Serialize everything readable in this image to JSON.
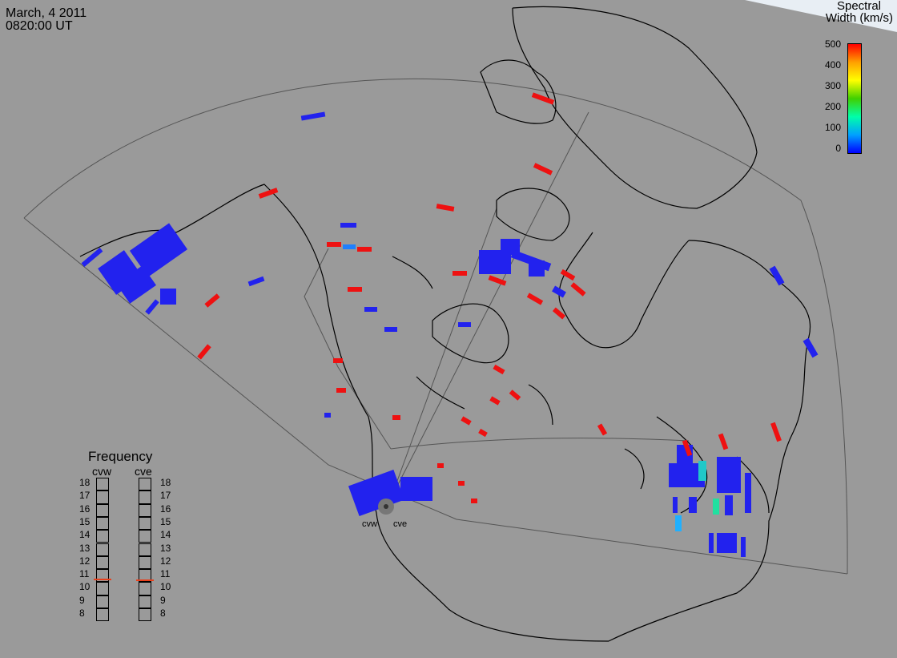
{
  "header": {
    "date": "March, 4 2011",
    "time": "0820:00 UT"
  },
  "colorbar": {
    "title_line1": "Spectral",
    "title_line2": "Width (km/s)",
    "ticks": [
      "500",
      "400",
      "300",
      "200",
      "100",
      "0"
    ],
    "stops": [
      "#0000ff",
      "#00a0ff",
      "#00ffaa",
      "#40d000",
      "#ffff00",
      "#ffa000",
      "#ff0000"
    ]
  },
  "frequency_panel": {
    "title": "Frequency",
    "radars": [
      {
        "name": "cvw",
        "freq_mhz": 10.8
      },
      {
        "name": "cve",
        "freq_mhz": 10.7
      }
    ],
    "scale": [
      "18",
      "17",
      "16",
      "15",
      "14",
      "13",
      "12",
      "11",
      "10",
      "9",
      "8"
    ],
    "indicator_color": "#e8401c"
  },
  "sites": [
    {
      "label": "cvw"
    },
    {
      "label": "cve"
    }
  ],
  "colors": {
    "background": "#9a9a9a",
    "coast": "#000000",
    "fov": "#555555",
    "scatter_blue": "#2222ee",
    "scatter_red": "#ee1111"
  }
}
